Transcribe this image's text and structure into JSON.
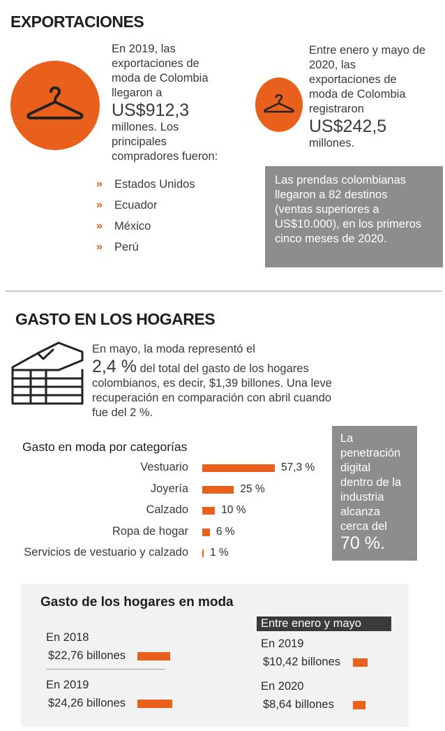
{
  "exportaciones": {
    "title": "EXPORTACIONES",
    "left": {
      "line1": "En 2019, las",
      "line2": "exportaciones de",
      "line3": "moda de Colombia",
      "line4": "llegaron a",
      "amount": "US$912,3",
      "line5": "millones. Los",
      "line6": "principales",
      "line7": "compradores fueron:",
      "buyers": [
        "Estados Unidos",
        "Ecuador",
        "México",
        "Perú"
      ],
      "icon": "hanger-icon"
    },
    "right": {
      "line1": "Entre enero y mayo de",
      "line2": "2020, las",
      "line3": "exportaciones de",
      "line4": "moda de Colombia",
      "line5": "registraron",
      "amount": "US$242,5",
      "line6": "millones.",
      "icon": "hanger-icon"
    },
    "box": {
      "line1": "Las prendas colombianas",
      "line2": "llegaron a 82 destinos",
      "line3": "(ventas superiores a",
      "line4": "US$10.000), en los primeros",
      "line5": "cinco meses de 2020."
    }
  },
  "gasto": {
    "title": "GASTO EN LOS HOGARES",
    "icon": "folded-clothes-icon",
    "intro1": "En mayo, la moda representó el",
    "pct": "2,4 %",
    "intro2": "del total del gasto de los hogares",
    "intro3": "colombianos, es decir, $1,39 billones. Una leve",
    "intro4": "recuperación en comparación con abril cuando",
    "intro5": "fue del 2 %.",
    "box": {
      "line1": "La",
      "line2": "penetración",
      "line3": "digital",
      "line4": "dentro de la",
      "line5": "industria",
      "line6": "alcanza",
      "line7": "cerca del",
      "value": "70 %."
    }
  },
  "panel": {
    "title": "Gasto de los hogares en moda",
    "tag": "Entre enero y mayo",
    "items": [
      {
        "year": "En 2018",
        "amount_num": "$22,76",
        "amount_unit": " billones"
      },
      {
        "year": "En 2019",
        "amount_num": "$24,26",
        "amount_unit": " billones"
      },
      {
        "year": "En 2019",
        "amount_num": "$10,42",
        "amount_unit": " billones"
      },
      {
        "year": "En 2020",
        "amount_num": "$8,64",
        "amount_unit": " billones"
      }
    ]
  },
  "chart_data": [
    {
      "type": "bar",
      "title": "Gasto en moda por categorías",
      "categories": [
        "Vestuario",
        "Joyería",
        "Calzado",
        "Ropa de hogar",
        "Servicios de vestuario y calzado"
      ],
      "values": [
        57.3,
        25,
        10,
        6,
        1
      ],
      "value_labels": [
        "57,3 %",
        "25 %",
        "10 %",
        "6 %",
        "1 %"
      ],
      "color": "#e8601c"
    },
    {
      "type": "bar",
      "title": "Gasto de los hogares en moda",
      "categories": [
        "En 2018",
        "En 2019",
        "En 2019",
        "En 2020"
      ],
      "values": [
        22.76,
        24.26,
        10.42,
        8.64
      ],
      "unit": "billones",
      "color": "#e8601c"
    }
  ]
}
